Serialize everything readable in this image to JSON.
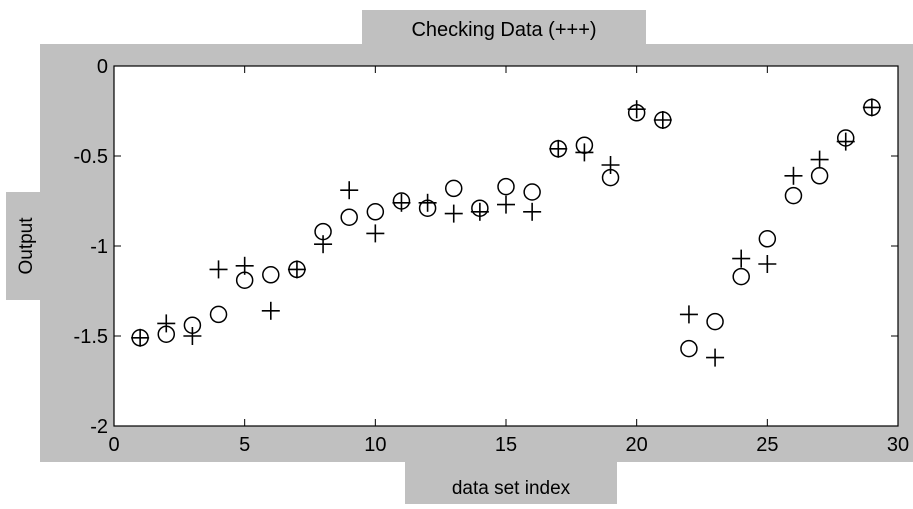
{
  "window": {
    "title": "Checking Data (+++)"
  },
  "chart_data": {
    "type": "scatter",
    "title": "Checking Data (+++)",
    "xlabel": "data set index",
    "ylabel": "Output",
    "xlim": [
      0,
      30
    ],
    "ylim": [
      -2,
      0
    ],
    "xticks": [
      0,
      5,
      10,
      15,
      20,
      25,
      30
    ],
    "yticks": [
      0,
      -0.5,
      -1,
      -1.5,
      -2
    ],
    "ytick_labels": [
      "0",
      "-0.5",
      "-1",
      "-1.5",
      "-2"
    ],
    "grid": false,
    "series": [
      {
        "marker": "circle",
        "x": [
          1,
          2,
          3,
          4,
          5,
          6,
          7,
          8,
          9,
          10,
          11,
          12,
          13,
          14,
          15,
          16,
          17,
          18,
          19,
          20,
          21,
          22,
          23,
          24,
          25,
          26,
          27,
          28,
          29
        ],
        "y": [
          -1.51,
          -1.49,
          -1.44,
          -1.38,
          -1.19,
          -1.16,
          -1.13,
          -0.92,
          -0.84,
          -0.81,
          -0.75,
          -0.79,
          -0.68,
          -0.79,
          -0.67,
          -0.7,
          -0.46,
          -0.44,
          -0.62,
          -0.26,
          -0.3,
          -1.57,
          -1.42,
          -1.17,
          -0.96,
          -0.72,
          -0.61,
          -0.4,
          -0.23
        ]
      },
      {
        "marker": "plus",
        "x": [
          1,
          2,
          3,
          4,
          5,
          6,
          7,
          8,
          9,
          10,
          11,
          12,
          13,
          14,
          15,
          16,
          17,
          18,
          19,
          20,
          21,
          22,
          23,
          24,
          25,
          26,
          27,
          28,
          29
        ],
        "y": [
          -1.51,
          -1.43,
          -1.5,
          -1.13,
          -1.11,
          -1.36,
          -1.13,
          -0.99,
          -0.69,
          -0.93,
          -0.76,
          -0.76,
          -0.82,
          -0.81,
          -0.77,
          -0.81,
          -0.46,
          -0.48,
          -0.55,
          -0.24,
          -0.3,
          -1.38,
          -1.62,
          -1.07,
          -1.1,
          -0.61,
          -0.52,
          -0.42,
          -0.23
        ]
      }
    ]
  }
}
